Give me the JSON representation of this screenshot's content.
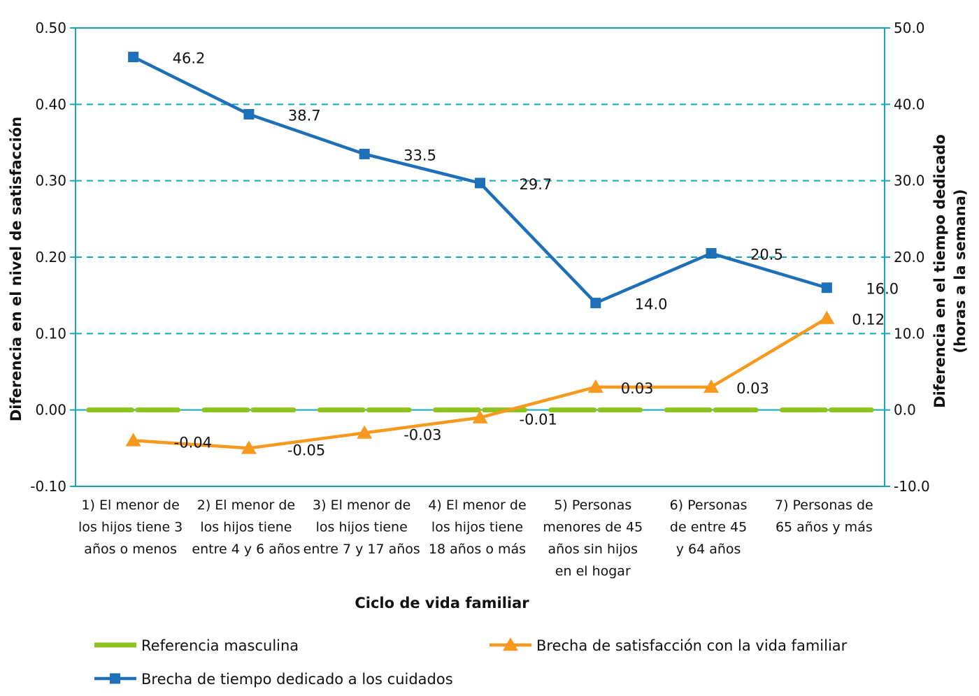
{
  "chart_data": {
    "type": "line",
    "xlabel": "Ciclo de vida familiar",
    "ylabel_left": "Diferencia en el nivel de satisfacción",
    "ylabel_right": [
      "Diferencia en el tiempo dedicado",
      "(horas a la semana)"
    ],
    "ylim_left": [
      -0.1,
      0.5
    ],
    "ylim_right": [
      -10,
      50
    ],
    "left_ticks": [
      "0.50",
      "0.40",
      "0.30",
      "0.20",
      "0.10",
      "0.00",
      "-0.10"
    ],
    "right_ticks": [
      "50.0",
      "40.0",
      "30.0",
      "20.0",
      "10.0",
      "0.0",
      "-10.0"
    ],
    "grid": "horizontal dashed",
    "legend_position": "bottom",
    "categories": [
      [
        "1) El menor de",
        "los hijos tiene 3",
        "años o menos"
      ],
      [
        "2) El menor de",
        "los hijos tiene",
        "entre 4 y 6 años"
      ],
      [
        "3) El menor de",
        "los hijos tiene",
        "entre 7 y 17 años"
      ],
      [
        "4) El menor de",
        "los hijos tiene",
        "18 años o más"
      ],
      [
        "5) Personas",
        "menores de 45",
        "años sin hijos",
        "en el hogar"
      ],
      [
        "6) Personas",
        "de entre 45",
        "y 64 años"
      ],
      [
        "7) Personas de",
        "65 años y más"
      ]
    ],
    "series": [
      {
        "name": "Referencia masculina",
        "axis": "left",
        "values": [
          0,
          0,
          0,
          0,
          0,
          0,
          0
        ],
        "color": "#8CC31E",
        "marker": "none"
      },
      {
        "name": "Brecha de satisfacción con la vida familiar",
        "axis": "left",
        "values": [
          -0.04,
          -0.05,
          -0.03,
          -0.01,
          0.03,
          0.03,
          0.12
        ],
        "labels": [
          "-0.04",
          "-0.05",
          "-0.03",
          "-0.01",
          "0.03",
          "0.03",
          "0.12"
        ],
        "color": "#F7991E",
        "marker": "triangle"
      },
      {
        "name": "Brecha de tiempo dedicado a los cuidados",
        "axis": "right",
        "values": [
          46.2,
          38.7,
          33.5,
          29.7,
          14.0,
          20.5,
          16.0
        ],
        "labels": [
          "46.2",
          "38.7",
          "33.5",
          "29.7",
          "14.0",
          "20.5",
          "16.0"
        ],
        "color": "#1D6FB8",
        "marker": "square"
      }
    ],
    "colors": {
      "frame": "#17A6C2",
      "grid": "#17A6C2"
    }
  }
}
